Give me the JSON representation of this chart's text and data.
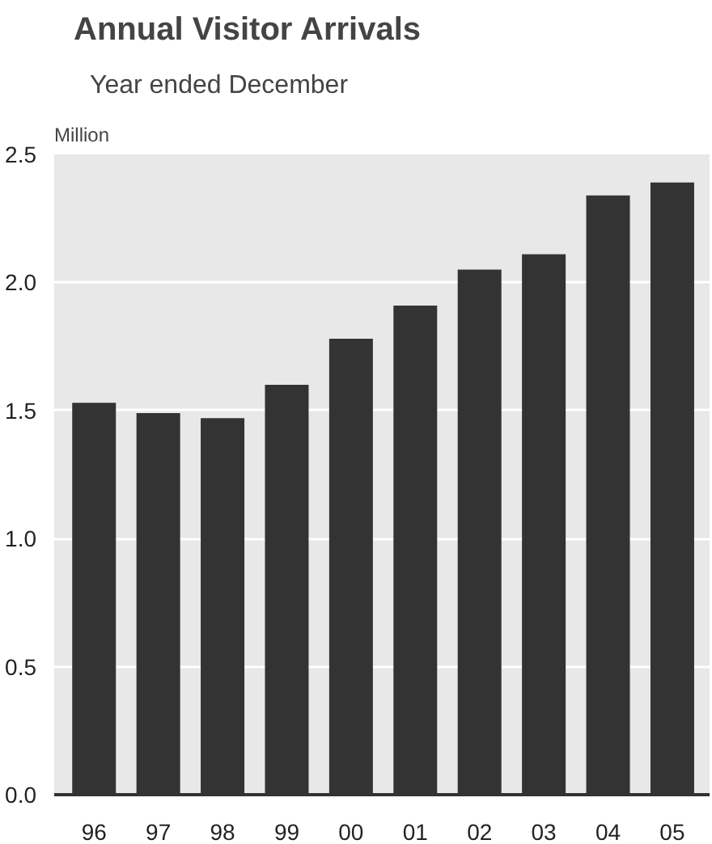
{
  "chart_data": {
    "type": "bar",
    "title": "Annual Visitor Arrivals",
    "subtitle": "Year ended December",
    "ylabel": "Million",
    "categories": [
      "96",
      "97",
      "98",
      "99",
      "00",
      "01",
      "02",
      "03",
      "04",
      "05"
    ],
    "values": [
      1.53,
      1.49,
      1.47,
      1.6,
      1.78,
      1.91,
      2.05,
      2.11,
      2.34,
      2.39
    ],
    "color": "#333333",
    "ylim": [
      0,
      2.5
    ],
    "yticks": [
      {
        "value": 0,
        "label": "0.0"
      },
      {
        "value": 0.5,
        "label": "0.5"
      },
      {
        "value": 1,
        "label": "1.0"
      },
      {
        "value": 1.5,
        "label": "1.5"
      },
      {
        "value": 2,
        "label": "2.0"
      },
      {
        "value": 2.5,
        "label": "2.5"
      }
    ],
    "grid": "y"
  }
}
